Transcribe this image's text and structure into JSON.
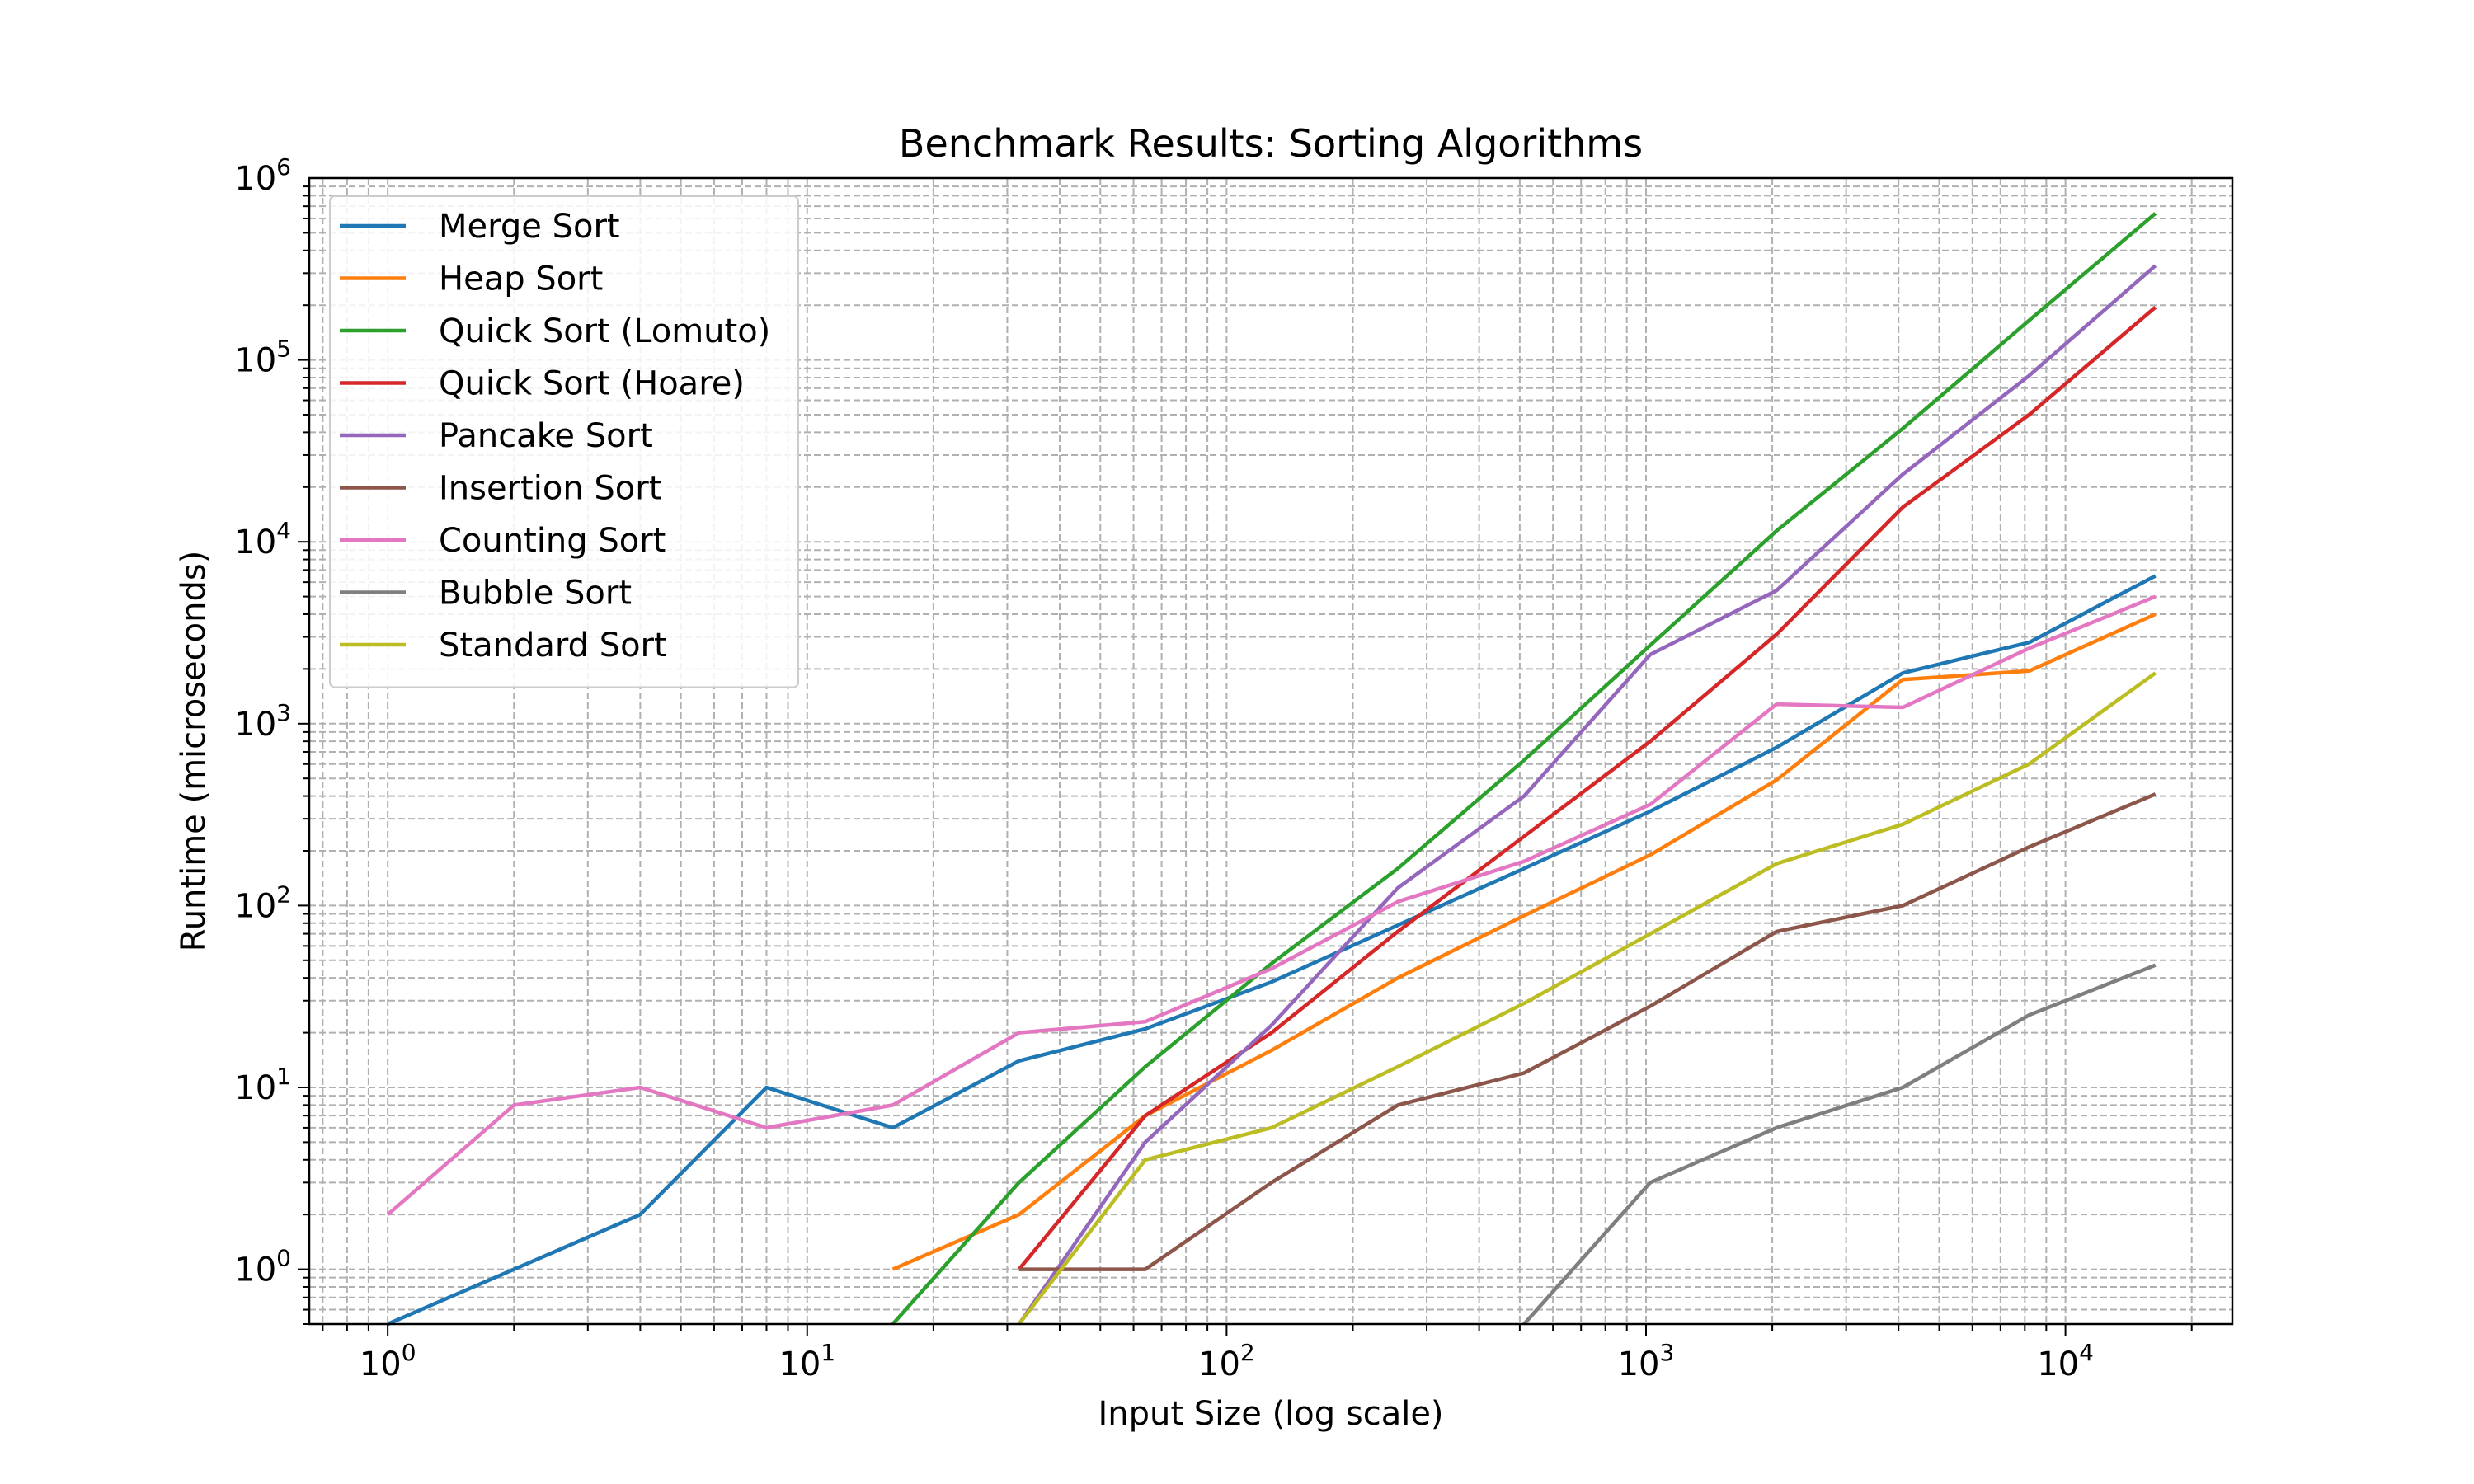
{
  "chart_data": {
    "type": "line",
    "title": "Benchmark Results: Sorting Algorithms",
    "xlabel": "Input Size (log scale)",
    "ylabel": "Runtime (microseconds)",
    "xscale": "log",
    "yscale": "log",
    "xlim": [
      0.65,
      25000
    ],
    "ylim": [
      0.5,
      1000000
    ],
    "grid": true,
    "legend_position": "top-left",
    "x_ticks": [
      {
        "value": 1,
        "base": "10",
        "exp": "0"
      },
      {
        "value": 10,
        "base": "10",
        "exp": "1"
      },
      {
        "value": 100,
        "base": "10",
        "exp": "2"
      },
      {
        "value": 1000,
        "base": "10",
        "exp": "3"
      },
      {
        "value": 10000,
        "base": "10",
        "exp": "4"
      }
    ],
    "y_ticks": [
      {
        "value": 1,
        "base": "10",
        "exp": "0"
      },
      {
        "value": 10,
        "base": "10",
        "exp": "1"
      },
      {
        "value": 100,
        "base": "10",
        "exp": "2"
      },
      {
        "value": 1000,
        "base": "10",
        "exp": "3"
      },
      {
        "value": 10000,
        "base": "10",
        "exp": "4"
      },
      {
        "value": 100000,
        "base": "10",
        "exp": "5"
      },
      {
        "value": 1000000,
        "base": "10",
        "exp": "6"
      }
    ],
    "x": [
      1,
      2,
      4,
      8,
      16,
      32,
      64,
      128,
      256,
      512,
      1024,
      2048,
      4096,
      8192,
      16384
    ],
    "series": [
      {
        "name": "Merge Sort",
        "color": "#1f77b4",
        "values": [
          0,
          1,
          2,
          10,
          6,
          14,
          21,
          38,
          78,
          160,
          330,
          740,
          1900,
          2800,
          6500
        ]
      },
      {
        "name": "Heap Sort",
        "color": "#ff7f0e",
        "values": [
          null,
          null,
          null,
          null,
          1,
          2,
          7,
          16,
          40,
          88,
          190,
          490,
          1750,
          1950,
          4000
        ]
      },
      {
        "name": "Quick Sort (Lomuto)",
        "color": "#2ca02c",
        "values": [
          null,
          null,
          null,
          null,
          0,
          3,
          13,
          48,
          160,
          630,
          2700,
          11500,
          42000,
          165000,
          640000
        ]
      },
      {
        "name": "Quick Sort (Hoare)",
        "color": "#d62728",
        "values": [
          null,
          null,
          null,
          null,
          null,
          1,
          7,
          20,
          72,
          240,
          800,
          3100,
          15500,
          50000,
          195000
        ]
      },
      {
        "name": "Pancake Sort",
        "color": "#9467bd",
        "values": [
          null,
          null,
          null,
          null,
          null,
          0,
          5,
          22,
          125,
          400,
          2400,
          5400,
          23500,
          82000,
          330000
        ]
      },
      {
        "name": "Insertion Sort",
        "color": "#8c564b",
        "values": [
          null,
          null,
          null,
          null,
          null,
          1,
          1,
          3,
          8,
          12,
          28,
          72,
          100,
          210,
          410
        ]
      },
      {
        "name": "Counting Sort",
        "color": "#e377c2",
        "values": [
          2,
          8,
          10,
          6,
          8,
          20,
          23,
          45,
          105,
          175,
          360,
          1280,
          1230,
          2600,
          5000
        ]
      },
      {
        "name": "Bubble Sort",
        "color": "#7f7f7f",
        "values": [
          null,
          null,
          null,
          null,
          null,
          null,
          null,
          null,
          null,
          0,
          3,
          6,
          10,
          25,
          47
        ]
      },
      {
        "name": "Standard Sort",
        "color": "#bcbd22",
        "values": [
          null,
          null,
          0,
          null,
          null,
          0,
          4,
          6,
          13,
          29,
          70,
          170,
          280,
          600,
          1900
        ]
      }
    ]
  }
}
